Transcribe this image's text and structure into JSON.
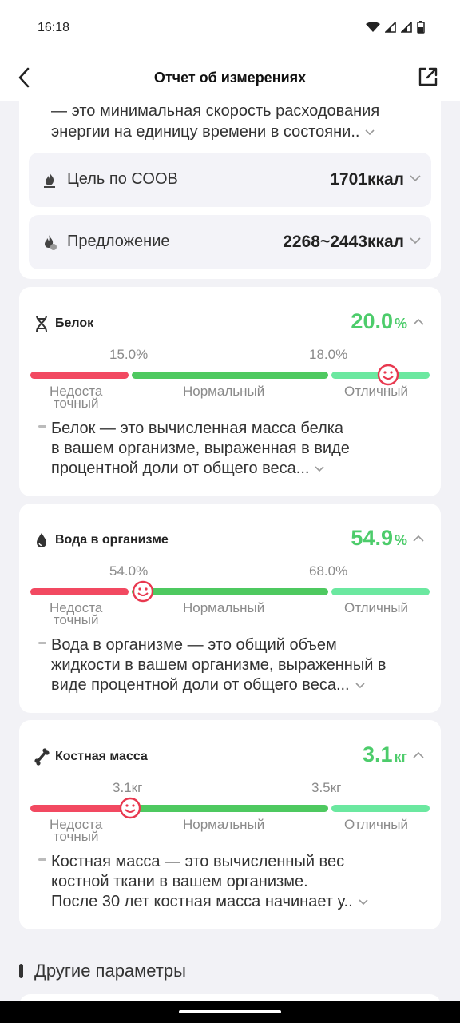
{
  "status": {
    "time": "16:18"
  },
  "header": {
    "title": "Отчет об измерениях"
  },
  "bmr": {
    "desc_line1": "— это минимальная скорость расходования",
    "desc_line2": "энергии на единицу времени в состояни..",
    "goal_label": "Цель по СООВ",
    "goal_value": "1701ккал",
    "suggest_label": "Предложение",
    "suggest_value": "2268~2443ккал"
  },
  "metrics": [
    {
      "name": "Белок",
      "value": "20.0",
      "unit": "%",
      "thr1": "15.0%",
      "thr2": "18.0%",
      "zone1_a": "Недоста",
      "zone1_b": "точный",
      "zone2": "Нормальный",
      "zone3": "Отличный",
      "desc_l1": "Белок — это вычисленная масса белка",
      "desc_l2": "в вашем организме, выраженная в виде",
      "desc_l3": "процентной доли от общего веса...",
      "icon": "dna-icon"
    },
    {
      "name": "Вода в организме",
      "value": "54.9",
      "unit": "%",
      "thr1": "54.0%",
      "thr2": "68.0%",
      "zone1_a": "Недоста",
      "zone1_b": "точный",
      "zone2": "Нормальный",
      "zone3": "Отличный",
      "desc_l1": "Вода в организме — это общий объем",
      "desc_l2": "жидкости в вашем организме, выраженный в",
      "desc_l3": "виде процентной доли от общего веса...",
      "icon": "water-drop-icon"
    },
    {
      "name": "Костная масса",
      "value": "3.1",
      "unit": "кг",
      "thr1": "3.1кг",
      "thr2": "3.5кг",
      "zone1_a": "Недоста",
      "zone1_b": "точный",
      "zone2": "Нормальный",
      "zone3": "Отличный",
      "desc_l1": "Костная масса — это вычисленный вес",
      "desc_l2": "костной ткани в вашем организме.",
      "desc_l3": "После 30 лет костная масса начинает у..",
      "icon": "bone-icon"
    }
  ],
  "other": {
    "title": "Другие параметры"
  },
  "colors": {
    "accent": "#4dcc6b",
    "low": "#f24961",
    "normal": "#4ec960",
    "excellent": "#6be8a0"
  }
}
